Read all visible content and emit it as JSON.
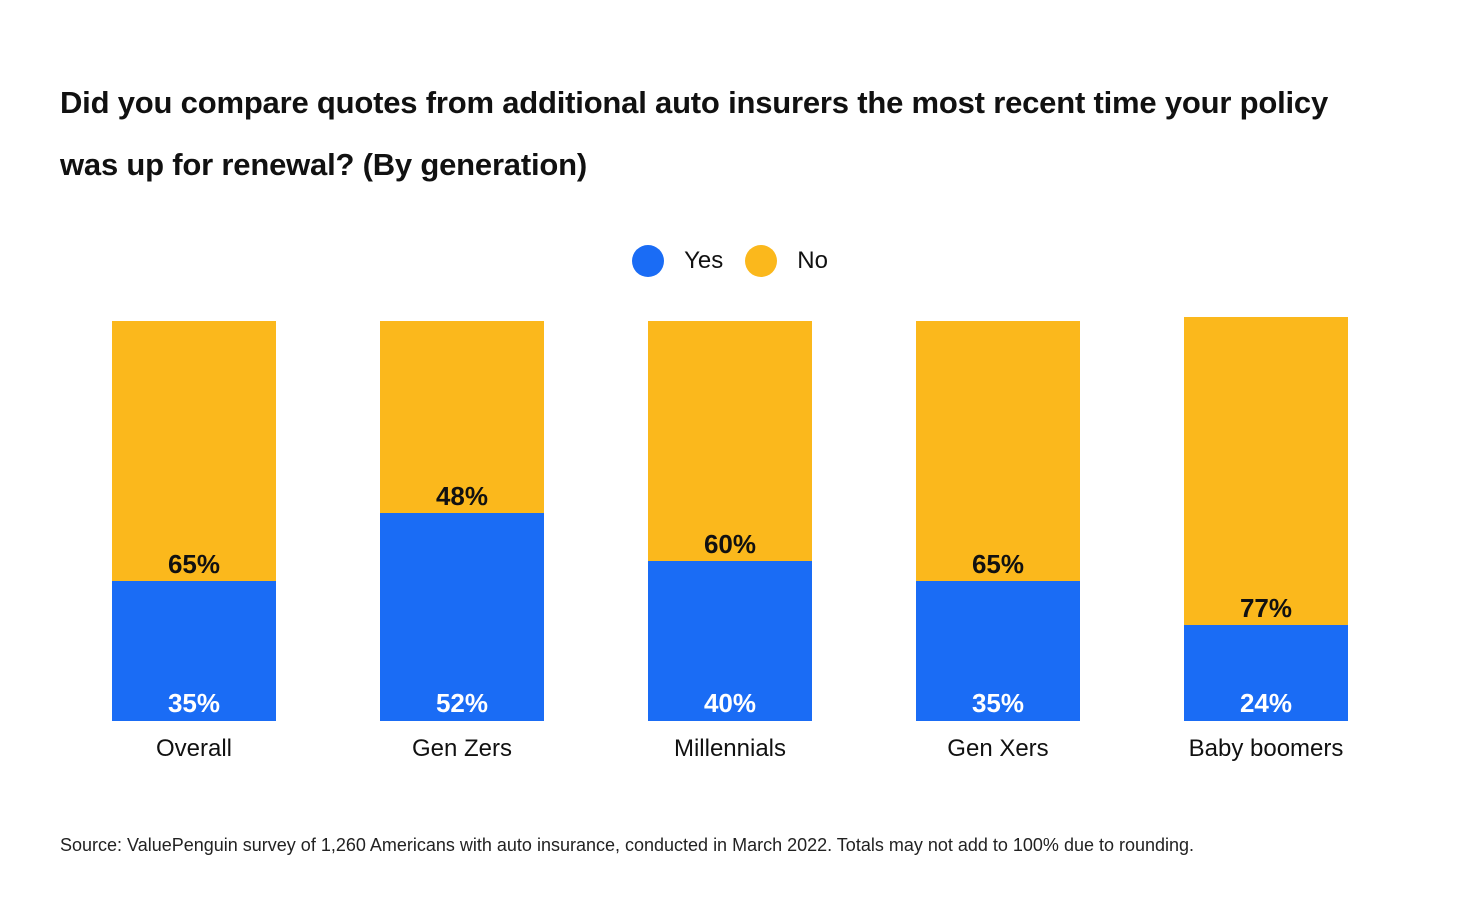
{
  "chart_data": {
    "type": "bar",
    "stacked": true,
    "title": "Did you compare quotes from additional auto insurers the most recent time your policy was up for renewal? (By generation)",
    "categories": [
      "Overall",
      "Gen Zers",
      "Millennials",
      "Gen Xers",
      "Baby boomers"
    ],
    "series": [
      {
        "name": "Yes",
        "values": [
          35,
          52,
          40,
          35,
          24
        ],
        "labels": [
          "35%",
          "52%",
          "40%",
          "35%",
          "24%"
        ],
        "color": "#1a6cf5"
      },
      {
        "name": "No",
        "values": [
          65,
          48,
          60,
          65,
          77
        ],
        "labels": [
          "65%",
          "48%",
          "60%",
          "65%",
          "77%"
        ],
        "color": "#fbb81c"
      }
    ],
    "ylim": [
      0,
      100
    ],
    "grid": false,
    "legend_position": "top-center",
    "source": "Source: ValuePenguin survey of 1,260 Americans with auto insurance, conducted in March 2022. Totals may not add to 100% due to rounding."
  }
}
